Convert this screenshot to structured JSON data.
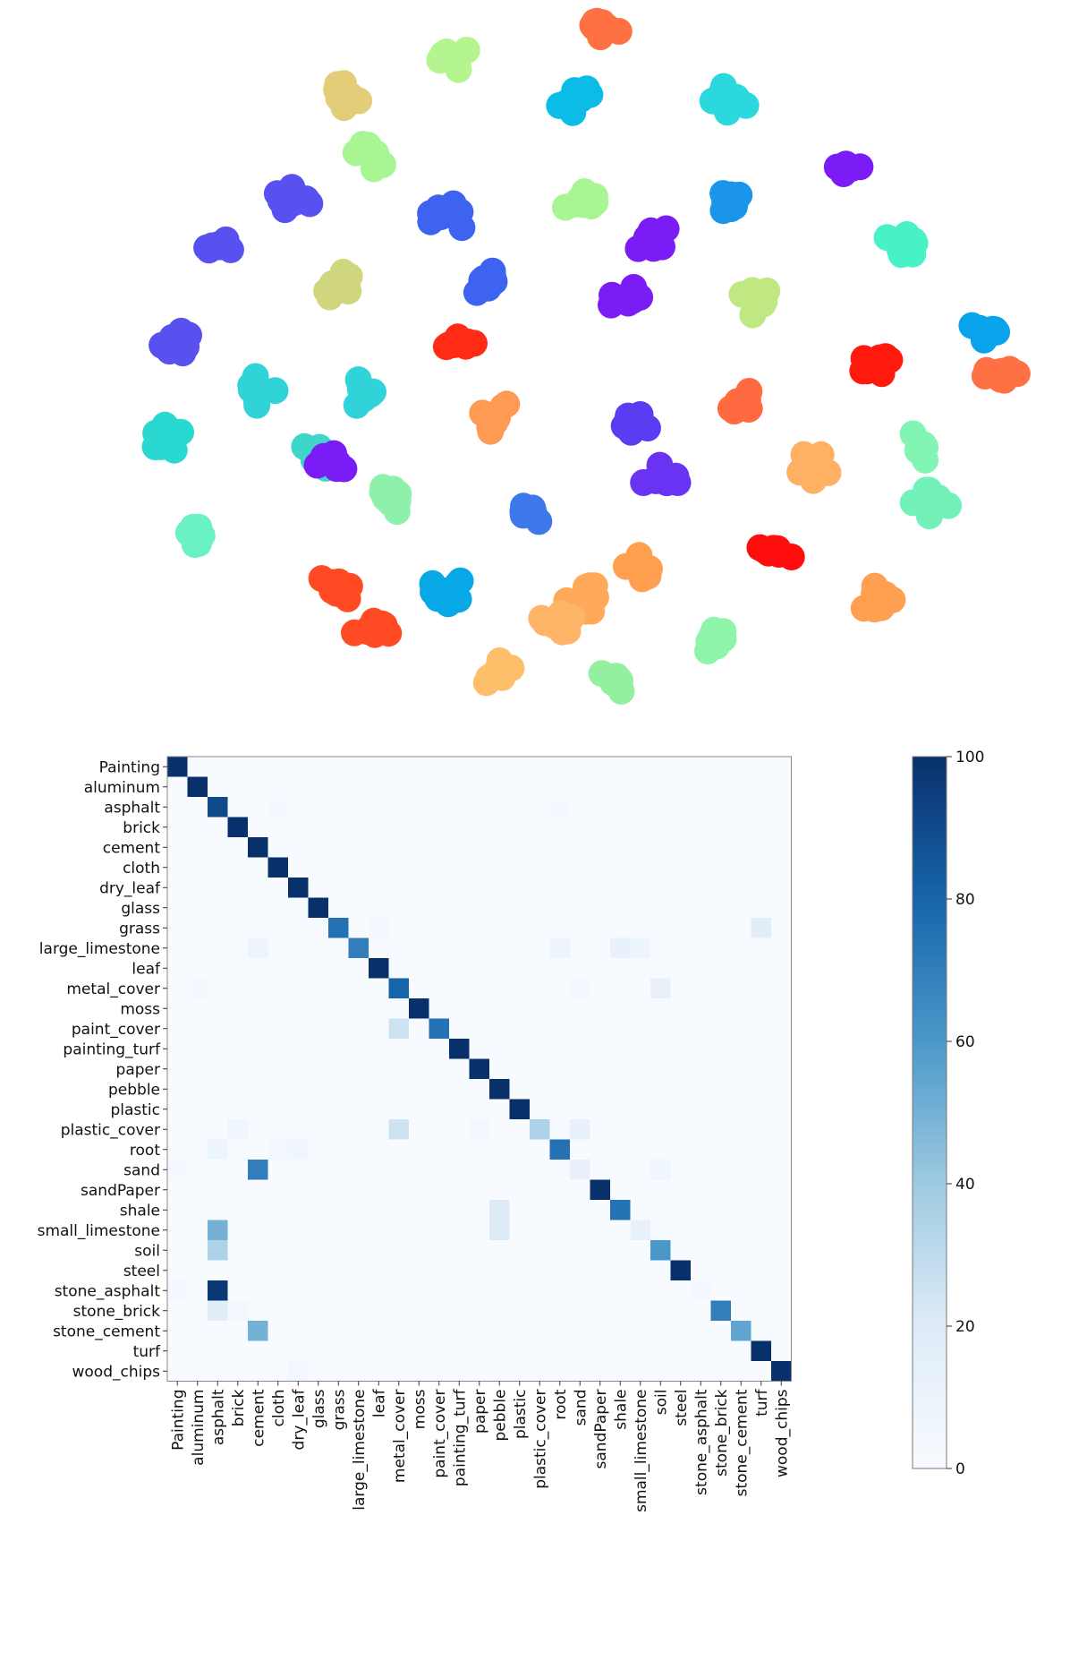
{
  "chart_data": [
    {
      "type": "scatter",
      "title": "",
      "xlabel": "",
      "ylabel": "",
      "axes": "hidden",
      "colormap": "rainbow",
      "clusters": [
        {
          "x": 0.56,
          "y": 0.01,
          "color": "#ff7043"
        },
        {
          "x": 0.4,
          "y": 0.055,
          "color": "#b4f590"
        },
        {
          "x": 0.29,
          "y": 0.11,
          "color": "#e3cd78"
        },
        {
          "x": 0.53,
          "y": 0.12,
          "color": "#0bbde6"
        },
        {
          "x": 0.69,
          "y": 0.115,
          "color": "#2ad8de"
        },
        {
          "x": 0.32,
          "y": 0.2,
          "color": "#a8f594"
        },
        {
          "x": 0.81,
          "y": 0.215,
          "color": "#7b1cf6"
        },
        {
          "x": 0.24,
          "y": 0.26,
          "color": "#5850ef"
        },
        {
          "x": 0.4,
          "y": 0.29,
          "color": "#3d63f0"
        },
        {
          "x": 0.54,
          "y": 0.27,
          "color": "#a8f594"
        },
        {
          "x": 0.69,
          "y": 0.26,
          "color": "#1b95ea"
        },
        {
          "x": 0.16,
          "y": 0.33,
          "color": "#5850ef"
        },
        {
          "x": 0.61,
          "y": 0.32,
          "color": "#7b1cf6"
        },
        {
          "x": 0.87,
          "y": 0.33,
          "color": "#48f2c6"
        },
        {
          "x": 0.29,
          "y": 0.39,
          "color": "#cfd67e"
        },
        {
          "x": 0.44,
          "y": 0.38,
          "color": "#3d63f0"
        },
        {
          "x": 0.58,
          "y": 0.41,
          "color": "#7b1cf6"
        },
        {
          "x": 0.72,
          "y": 0.41,
          "color": "#bfe882"
        },
        {
          "x": 0.96,
          "y": 0.45,
          "color": "#08a3ea"
        },
        {
          "x": 0.12,
          "y": 0.47,
          "color": "#5850ef"
        },
        {
          "x": 0.41,
          "y": 0.47,
          "color": "#ff2b14"
        },
        {
          "x": 0.84,
          "y": 0.5,
          "color": "#ff1a0d"
        },
        {
          "x": 0.2,
          "y": 0.54,
          "color": "#2fd3d8"
        },
        {
          "x": 0.31,
          "y": 0.54,
          "color": "#2fd3d8"
        },
        {
          "x": 0.97,
          "y": 0.52,
          "color": "#ff7043"
        },
        {
          "x": 0.45,
          "y": 0.58,
          "color": "#ff9a55"
        },
        {
          "x": 0.59,
          "y": 0.59,
          "color": "#5a3cf2"
        },
        {
          "x": 0.7,
          "y": 0.56,
          "color": "#ff6a40"
        },
        {
          "x": 0.11,
          "y": 0.61,
          "color": "#2ad8d2"
        },
        {
          "x": 0.26,
          "y": 0.64,
          "color": "#3dd6c8"
        },
        {
          "x": 0.28,
          "y": 0.64,
          "color": "#7a1cf6"
        },
        {
          "x": 0.89,
          "y": 0.62,
          "color": "#82f5b4"
        },
        {
          "x": 0.78,
          "y": 0.65,
          "color": "#ffb062"
        },
        {
          "x": 0.34,
          "y": 0.7,
          "color": "#8ef0aa"
        },
        {
          "x": 0.48,
          "y": 0.72,
          "color": "#3d79ea"
        },
        {
          "x": 0.62,
          "y": 0.67,
          "color": "#6a32f2"
        },
        {
          "x": 0.14,
          "y": 0.75,
          "color": "#6af2c2"
        },
        {
          "x": 0.9,
          "y": 0.7,
          "color": "#72f2b8"
        },
        {
          "x": 0.74,
          "y": 0.77,
          "color": "#ff0d0d"
        },
        {
          "x": 0.28,
          "y": 0.83,
          "color": "#ff4a24"
        },
        {
          "x": 0.4,
          "y": 0.83,
          "color": "#08a8e6"
        },
        {
          "x": 0.54,
          "y": 0.84,
          "color": "#ffaa5a"
        },
        {
          "x": 0.6,
          "y": 0.8,
          "color": "#ffa050"
        },
        {
          "x": 0.84,
          "y": 0.84,
          "color": "#ffa050"
        },
        {
          "x": 0.51,
          "y": 0.88,
          "color": "#ffb568"
        },
        {
          "x": 0.67,
          "y": 0.9,
          "color": "#8cf5a8"
        },
        {
          "x": 0.32,
          "y": 0.89,
          "color": "#ff4a24"
        },
        {
          "x": 0.45,
          "y": 0.95,
          "color": "#ffbe6a"
        },
        {
          "x": 0.57,
          "y": 0.96,
          "color": "#92f0a0"
        }
      ]
    },
    {
      "type": "heatmap",
      "title": "",
      "xlabel": "",
      "ylabel": "",
      "colormap": "Blues",
      "colorbar_ticks": [
        0,
        20,
        40,
        60,
        80,
        100
      ],
      "colorbar_range": [
        0,
        100
      ],
      "labels": [
        "Painting",
        "aluminum",
        "asphalt",
        "brick",
        "cement",
        "cloth",
        "dry_leaf",
        "glass",
        "grass",
        "large_limestone",
        "leaf",
        "metal_cover",
        "moss",
        "paint_cover",
        "painting_turf",
        "paper",
        "pebble",
        "plastic",
        "plastic_cover",
        "root",
        "sand",
        "sandPaper",
        "shale",
        "small_limestone",
        "soil",
        "steel",
        "stone_asphalt",
        "stone_brick",
        "stone_cement",
        "turf",
        "wood_chips"
      ],
      "diagonal": [
        100,
        100,
        90,
        100,
        100,
        100,
        100,
        100,
        75,
        70,
        100,
        80,
        100,
        75,
        100,
        100,
        100,
        100,
        35,
        75,
        12,
        100,
        75,
        12,
        60,
        100,
        3,
        70,
        55,
        100,
        100
      ],
      "off_diagonal": [
        {
          "row": "grass",
          "col": "leaf",
          "value": 4
        },
        {
          "row": "grass",
          "col": "turf",
          "value": 18
        },
        {
          "row": "large_limestone",
          "col": "cement",
          "value": 8
        },
        {
          "row": "large_limestone",
          "col": "root",
          "value": 8
        },
        {
          "row": "large_limestone",
          "col": "shale",
          "value": 12
        },
        {
          "row": "large_limestone",
          "col": "small_limestone",
          "value": 8
        },
        {
          "row": "metal_cover",
          "col": "aluminum",
          "value": 3
        },
        {
          "row": "metal_cover",
          "col": "sand",
          "value": 4
        },
        {
          "row": "metal_cover",
          "col": "soil",
          "value": 12
        },
        {
          "row": "paint_cover",
          "col": "metal_cover",
          "value": 25
        },
        {
          "row": "plastic_cover",
          "col": "brick",
          "value": 6
        },
        {
          "row": "plastic_cover",
          "col": "metal_cover",
          "value": 25
        },
        {
          "row": "plastic_cover",
          "col": "sand",
          "value": 12
        },
        {
          "row": "plastic_cover",
          "col": "paper",
          "value": 4
        },
        {
          "row": "root",
          "col": "asphalt",
          "value": 8
        },
        {
          "row": "root",
          "col": "dry_leaf",
          "value": 6
        },
        {
          "row": "root",
          "col": "cloth",
          "value": 4
        },
        {
          "row": "sand",
          "col": "cement",
          "value": 70
        },
        {
          "row": "sand",
          "col": "soil",
          "value": 6
        },
        {
          "row": "shale",
          "col": "pebble",
          "value": 20
        },
        {
          "row": "small_limestone",
          "col": "asphalt",
          "value": 50
        },
        {
          "row": "small_limestone",
          "col": "pebble",
          "value": 20
        },
        {
          "row": "soil",
          "col": "asphalt",
          "value": 35
        },
        {
          "row": "stone_asphalt",
          "col": "asphalt",
          "value": 97
        },
        {
          "row": "stone_asphalt",
          "col": "Painting",
          "value": 4
        },
        {
          "row": "stone_brick",
          "col": "asphalt",
          "value": 18
        },
        {
          "row": "stone_brick",
          "col": "brick",
          "value": 5
        },
        {
          "row": "stone_cement",
          "col": "cement",
          "value": 50
        },
        {
          "row": "wood_chips",
          "col": "dry_leaf",
          "value": 4
        },
        {
          "row": "sand",
          "col": "Painting",
          "value": 3
        },
        {
          "row": "asphalt",
          "col": "cloth",
          "value": 3
        },
        {
          "row": "asphalt",
          "col": "root",
          "value": 3
        }
      ]
    }
  ]
}
